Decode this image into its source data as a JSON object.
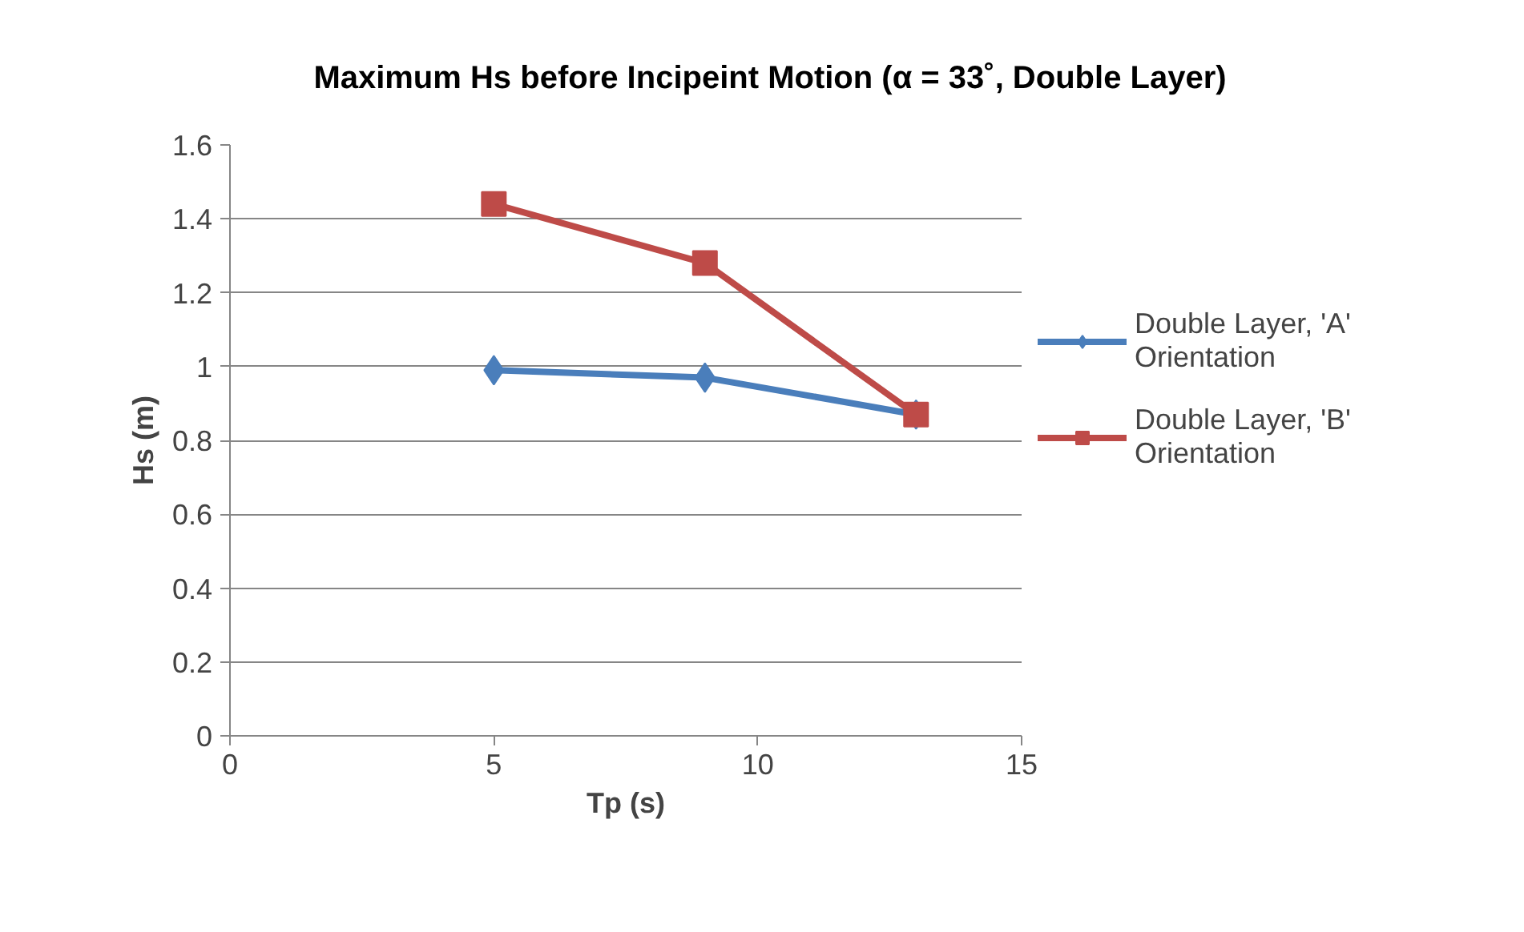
{
  "chart_data": {
    "type": "line",
    "title": "Maximum Hs before Incipeint Motion (α = 33˚,  Double Layer)",
    "xlabel": "Tp (s)",
    "ylabel": "Hs (m)",
    "x": [
      5,
      9,
      13
    ],
    "series": [
      {
        "name": "Double Layer, 'A' Orientation",
        "color": "#4a7ebb",
        "marker": "diamond",
        "values": [
          0.99,
          0.97,
          0.87
        ]
      },
      {
        "name": "Double Layer, 'B' Orientation",
        "color": "#be4b48",
        "marker": "square",
        "values": [
          1.44,
          1.28,
          0.87
        ]
      }
    ],
    "xlim": [
      0,
      15
    ],
    "xticks": [
      0,
      5,
      10,
      15
    ],
    "ylim": [
      0,
      1.6
    ],
    "yticks": [
      0,
      0.2,
      0.4,
      0.6,
      0.8,
      1,
      1.2,
      1.4,
      1.6
    ],
    "grid": "y",
    "legend": "right",
    "line_style": "solid"
  }
}
